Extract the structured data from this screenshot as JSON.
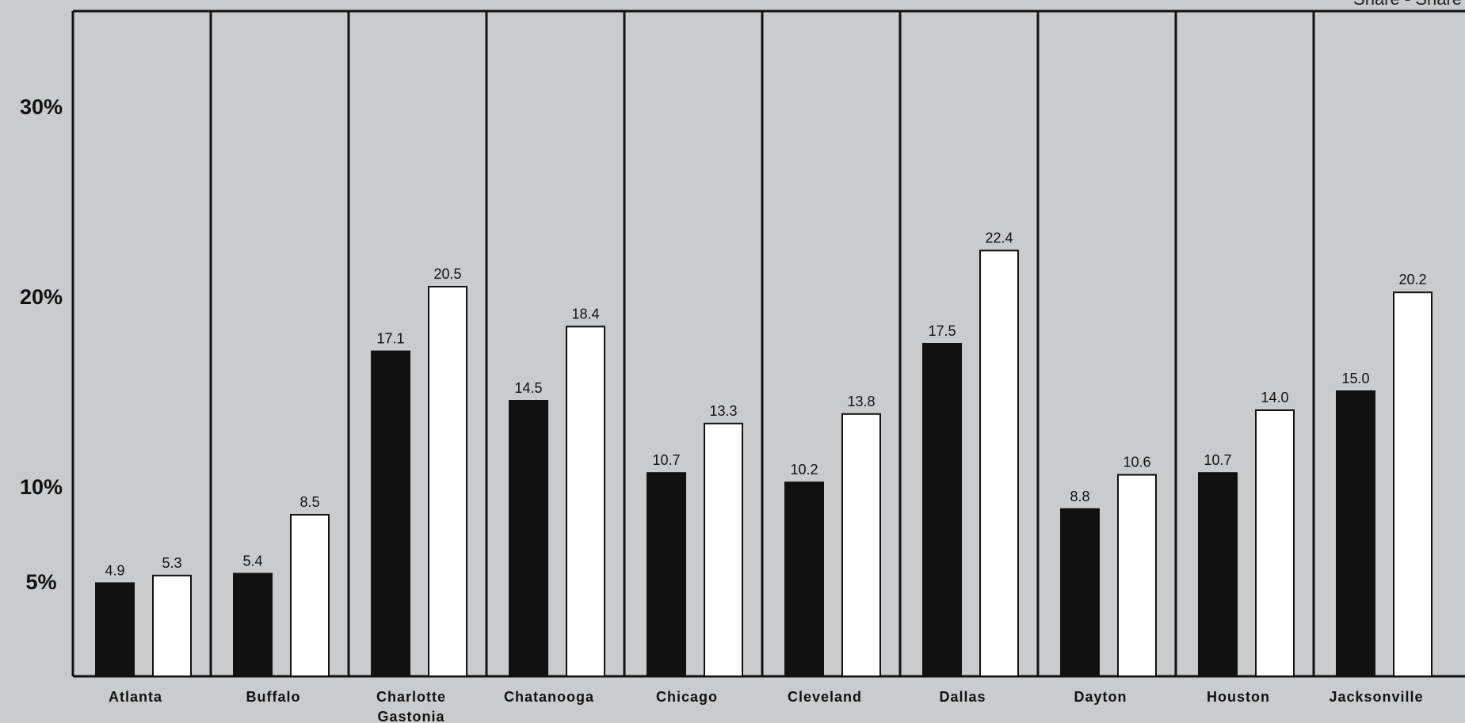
{
  "chart_data": {
    "type": "bar",
    "header_text": "Share - Share",
    "categories": [
      "Atlanta",
      "Buffalo",
      "Charlotte\nGastonia",
      "Chatanooga",
      "Chicago",
      "Cleveland",
      "Dallas",
      "Dayton",
      "Houston",
      "Jacksonville"
    ],
    "series": [
      {
        "color": "#111111",
        "values": [
          4.9,
          5.4,
          17.1,
          14.5,
          10.7,
          10.2,
          17.5,
          8.8,
          10.7,
          15.0
        ]
      },
      {
        "color": "#ffffff",
        "values": [
          5.3,
          8.5,
          20.5,
          18.4,
          13.3,
          13.8,
          22.4,
          10.6,
          14.0,
          20.2
        ]
      }
    ],
    "y_ticks": [
      {
        "value": 5,
        "label": "5%"
      },
      {
        "value": 10,
        "label": "10%"
      },
      {
        "value": 20,
        "label": "20%"
      },
      {
        "value": 30,
        "label": "30%"
      }
    ],
    "ylim": [
      0,
      35
    ],
    "grid": false,
    "legend": "none"
  }
}
